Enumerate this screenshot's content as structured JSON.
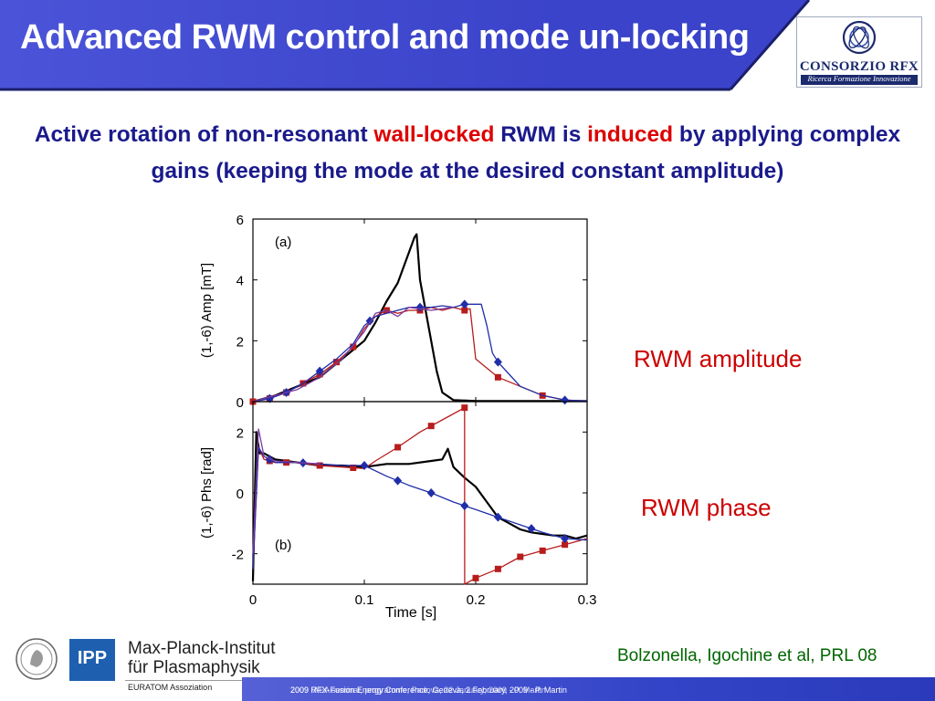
{
  "slide": {
    "title": "Advanced RWM control and mode un-locking",
    "subtitle": {
      "p1": "Active rotation of non-resonant ",
      "h1": "wall-locked",
      "p2": " RWM is ",
      "h2": "induced",
      "p3": " by applying complex gains (keeping the mode at the desired constant amplitude)"
    },
    "logo": {
      "name": "CONSORZIO RFX",
      "tagline": "Ricerca Formazione Innovazione"
    },
    "label_amplitude": "RWM amplitude",
    "label_phase": "RWM phase",
    "reference": "Bolzonella, Igochine et al, PRL 08",
    "institute": {
      "logo_text": "IPP",
      "line1": "Max-Planck-Institut",
      "line2": "für Plasmaphysik",
      "line3": "EURATOM Assoziation"
    },
    "footer": {
      "text_a": "2009 RFX-Fusion Energy Conference, Geneva, 2 February, 2009 - P. Martin",
      "text_b": "2009 IAEA seminar, programme, Padova, 22 January, 2009 - P. Martin"
    }
  },
  "colors": {
    "title_bar": "#3d45cc",
    "subtitle": "#1a1a8c",
    "highlight": "#dd0000",
    "series_black": "#000000",
    "series_red": "#b81c1c",
    "series_blue": "#1f2ea8",
    "series_purple": "#7a3aa0"
  },
  "chart_data": [
    {
      "type": "line",
      "panel_label": "(a)",
      "ylabel": "(1,-6) Amp [mT]",
      "xlim": [
        0,
        0.3
      ],
      "ylim": [
        0,
        6
      ],
      "yticks": [
        "0",
        "2",
        "4",
        "6"
      ],
      "series": [
        {
          "color": "#000000",
          "x": [
            0,
            0.02,
            0.04,
            0.06,
            0.08,
            0.1,
            0.11,
            0.12,
            0.13,
            0.14,
            0.145,
            0.147,
            0.15,
            0.155,
            0.16,
            0.165,
            0.17,
            0.18,
            0.2,
            0.25,
            0.3
          ],
          "y": [
            0,
            0.2,
            0.5,
            0.8,
            1.4,
            2.0,
            2.6,
            3.3,
            3.9,
            4.9,
            5.4,
            5.5,
            4.0,
            3.0,
            2.0,
            1.0,
            0.3,
            0.05,
            0.02,
            0.02,
            0.02
          ],
          "markers": false
        },
        {
          "color": "#b81c1c",
          "x": [
            0,
            0.015,
            0.03,
            0.045,
            0.06,
            0.075,
            0.09,
            0.1,
            0.11,
            0.12,
            0.13,
            0.14,
            0.15,
            0.16,
            0.17,
            0.18,
            0.19,
            0.195,
            0.2,
            0.21,
            0.22,
            0.24,
            0.26,
            0.28,
            0.3
          ],
          "y": [
            0,
            0.1,
            0.3,
            0.6,
            0.9,
            1.3,
            1.8,
            2.4,
            2.8,
            3.0,
            2.9,
            3.0,
            3.0,
            3.1,
            3.0,
            3.1,
            3.0,
            3.05,
            1.4,
            1.1,
            0.8,
            0.5,
            0.2,
            0.05,
            0.02
          ],
          "markers": [
            0,
            0.015,
            0.03,
            0.045,
            0.06,
            0.075,
            0.09,
            0.12,
            0.15,
            0.19,
            0.22,
            0.26
          ],
          "marker": "square"
        },
        {
          "color": "#1f2ea8",
          "x": [
            0,
            0.015,
            0.03,
            0.045,
            0.06,
            0.075,
            0.09,
            0.1,
            0.11,
            0.12,
            0.13,
            0.14,
            0.15,
            0.16,
            0.17,
            0.18,
            0.19,
            0.2,
            0.205,
            0.21,
            0.215,
            0.22,
            0.23,
            0.24,
            0.26,
            0.28,
            0.3
          ],
          "y": [
            0,
            0.1,
            0.3,
            0.6,
            1.0,
            1.4,
            1.9,
            2.5,
            2.8,
            2.9,
            3.0,
            3.1,
            3.1,
            3.1,
            3.15,
            3.1,
            3.2,
            3.2,
            3.2,
            2.5,
            1.6,
            1.3,
            0.9,
            0.5,
            0.2,
            0.05,
            0.02
          ],
          "markers": [
            0.015,
            0.03,
            0.06,
            0.105,
            0.15,
            0.19,
            0.22,
            0.28
          ],
          "marker": "diamond"
        },
        {
          "color": "#7a3aa0",
          "x": [
            0,
            0.02,
            0.04,
            0.06,
            0.08,
            0.1,
            0.11,
            0.12,
            0.13,
            0.14,
            0.16,
            0.18
          ],
          "y": [
            0,
            0.2,
            0.4,
            0.8,
            1.4,
            2.3,
            2.9,
            3.0,
            2.8,
            3.1,
            3.0,
            3.1
          ],
          "markers": false
        }
      ]
    },
    {
      "type": "line",
      "panel_label": "(b)",
      "xlabel": "Time [s]",
      "ylabel": "(1,-6) Phs [rad]",
      "xlim": [
        0,
        0.3
      ],
      "ylim": [
        -3,
        3
      ],
      "yticks": [
        "-2",
        "0",
        "2"
      ],
      "xticks": [
        "0",
        "0.1",
        "0.2",
        "0.3"
      ],
      "series": [
        {
          "color": "#000000",
          "x": [
            0,
            0.003,
            0.006,
            0.01,
            0.02,
            0.04,
            0.06,
            0.08,
            0.1,
            0.12,
            0.14,
            0.16,
            0.17,
            0.175,
            0.18,
            0.19,
            0.2,
            0.21,
            0.22,
            0.23,
            0.24,
            0.25,
            0.26,
            0.27,
            0.28,
            0.29,
            0.3
          ],
          "y": [
            -2.9,
            2.0,
            1.3,
            1.3,
            1.1,
            1.0,
            0.9,
            0.9,
            0.85,
            0.95,
            0.95,
            1.05,
            1.1,
            1.45,
            0.85,
            0.5,
            0.2,
            -0.3,
            -0.8,
            -1.0,
            -1.2,
            -1.3,
            -1.35,
            -1.4,
            -1.4,
            -1.5,
            -1.4
          ],
          "markers": false
        },
        {
          "color": "#b81c1c",
          "x": [
            0,
            0.005,
            0.01,
            0.02,
            0.04,
            0.06,
            0.08,
            0.1,
            0.11,
            0.13,
            0.15,
            0.17,
            0.19,
            0.1901,
            0.2,
            0.22,
            0.24,
            0.26,
            0.28,
            0.3
          ],
          "y": [
            -2.5,
            1.5,
            1.1,
            1.0,
            1.0,
            0.9,
            0.85,
            0.8,
            1.05,
            1.5,
            2.0,
            2.4,
            2.8,
            -3.0,
            -2.8,
            -2.5,
            -2.1,
            -1.9,
            -1.7,
            -1.5
          ],
          "markers": [
            0.015,
            0.03,
            0.06,
            0.09,
            0.13,
            0.16,
            0.19,
            0.2,
            0.22,
            0.24,
            0.26,
            0.28
          ],
          "marker": "square"
        },
        {
          "color": "#1f2ea8",
          "x": [
            0,
            0.005,
            0.01,
            0.02,
            0.04,
            0.06,
            0.08,
            0.1,
            0.12,
            0.14,
            0.16,
            0.18,
            0.2,
            0.22,
            0.24,
            0.26,
            0.28,
            0.3
          ],
          "y": [
            -2.5,
            1.5,
            1.2,
            1.0,
            1.0,
            0.95,
            0.9,
            0.9,
            0.55,
            0.25,
            0.0,
            -0.3,
            -0.55,
            -0.8,
            -1.05,
            -1.3,
            -1.5,
            -1.55
          ],
          "markers": [
            0.015,
            0.045,
            0.1,
            0.13,
            0.16,
            0.19,
            0.22,
            0.25,
            0.28
          ],
          "marker": "diamond"
        },
        {
          "color": "#7a3aa0",
          "x": [
            0,
            0.005,
            0.01,
            0.02,
            0.04,
            0.06
          ],
          "y": [
            -2.0,
            2.1,
            1.2,
            1.05,
            1.0,
            0.95
          ],
          "markers": false
        }
      ]
    }
  ]
}
